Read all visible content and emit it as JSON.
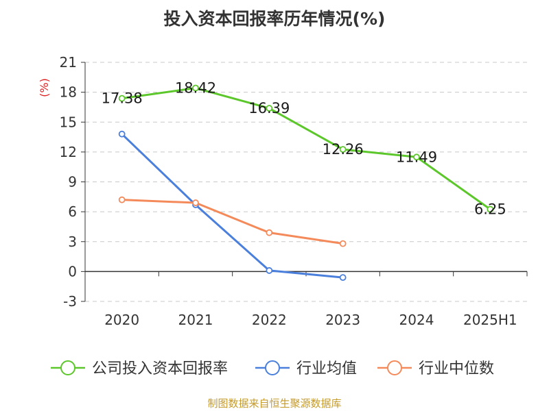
{
  "chart_data": {
    "type": "line",
    "title": "投入资本回报率历年情况(%)",
    "ylabel": "(%)",
    "categories": [
      "2020",
      "2021",
      "2022",
      "2023",
      "2024",
      "2025H1"
    ],
    "ylim": [
      -3,
      21
    ],
    "yticks": [
      -3,
      0,
      3,
      6,
      9,
      12,
      15,
      18,
      21
    ],
    "grid": true,
    "legend_position": "bottom",
    "series": [
      {
        "name": "公司投入资本回报率",
        "color": "#5cc72a",
        "values": [
          17.38,
          18.42,
          16.39,
          12.26,
          11.49,
          6.25
        ],
        "labels": [
          "17.38",
          "18.42",
          "16.39",
          "12.26",
          "11.49",
          "6.25"
        ]
      },
      {
        "name": "行业均值",
        "color": "#4a7fdc",
        "values": [
          13.8,
          6.7,
          0.1,
          -0.6,
          null,
          null
        ]
      },
      {
        "name": "行业中位数",
        "color": "#f48a5a",
        "values": [
          7.2,
          6.9,
          3.9,
          2.8,
          null,
          null
        ]
      }
    ]
  },
  "source": "制图数据来自恒生聚源数据库"
}
